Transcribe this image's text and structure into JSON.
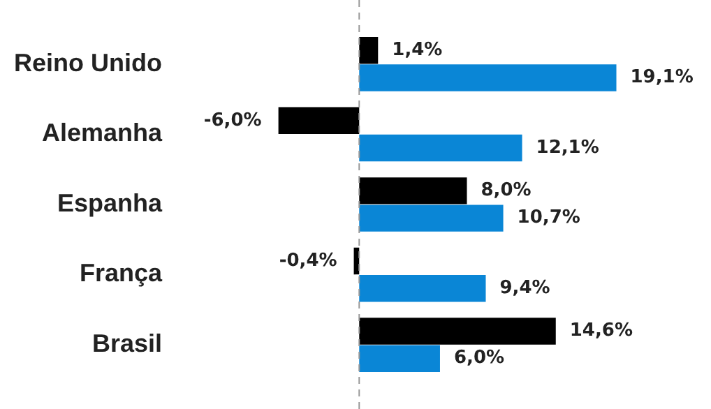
{
  "chart_data": {
    "type": "bar",
    "orientation": "horizontal",
    "categories": [
      "Reino Unido",
      "Alemanha",
      "Espanha",
      "França",
      "Brasil"
    ],
    "series": [
      {
        "color": "#000000",
        "values": [
          1.4,
          -6.0,
          8.0,
          -0.4,
          14.6
        ],
        "value_labels": [
          "1,4%",
          "-6,0%",
          "8,0%",
          "-0,4%",
          "14,6%"
        ]
      },
      {
        "color": "#0a86d6",
        "values": [
          19.1,
          12.1,
          10.7,
          9.4,
          6.0
        ],
        "value_labels": [
          "19,1%",
          "12,1%",
          "10,7%",
          "9,4%",
          "6,0%"
        ]
      }
    ],
    "tick_labels": "y",
    "legend": false,
    "ref_lines": [
      {
        "axis": "x",
        "value": 0,
        "color": "#999999",
        "line_style": "dashed"
      }
    ]
  }
}
